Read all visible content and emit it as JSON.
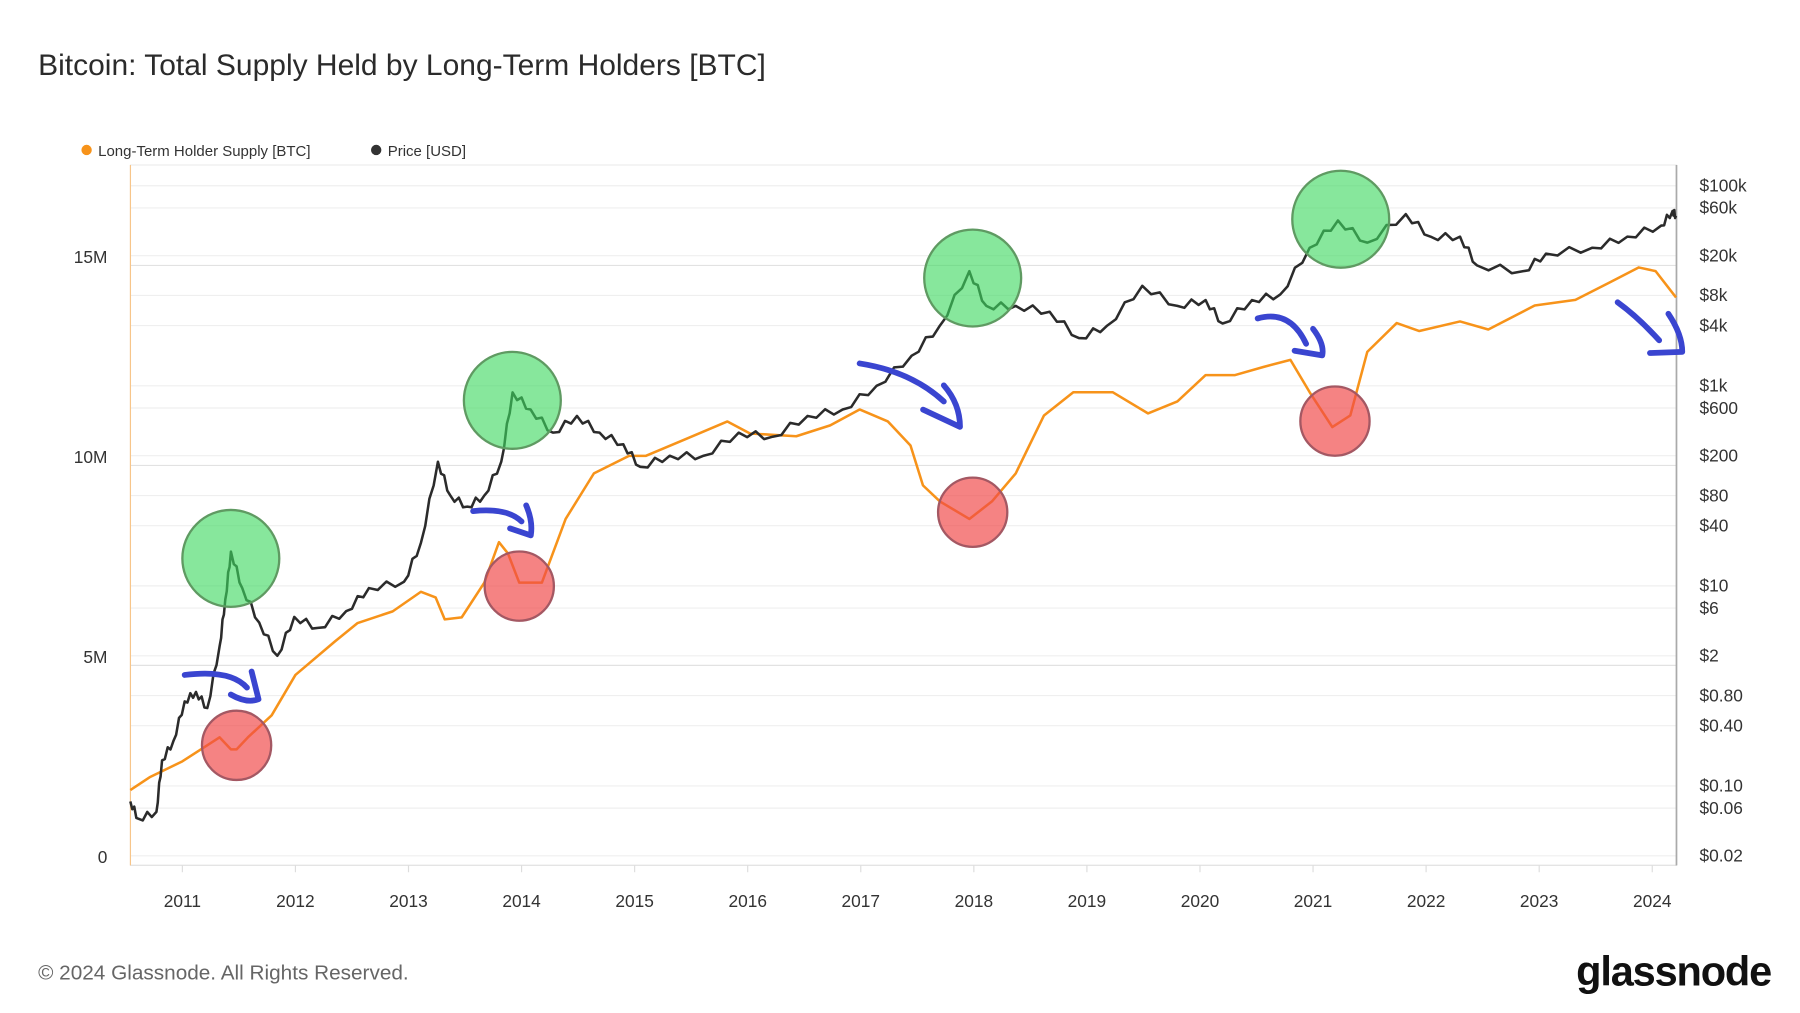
{
  "chart_data": {
    "type": "line",
    "title": "Bitcoin: Total Supply Held by Long-Term Holders [BTC]",
    "legend_position": "top-left",
    "grid": true,
    "x_axis": {
      "type": "date",
      "range": [
        2010.54,
        2024.22
      ],
      "ticks": [
        "2011",
        "2012",
        "2013",
        "2014",
        "2015",
        "2016",
        "2017",
        "2018",
        "2019",
        "2020",
        "2021",
        "2022",
        "2023",
        "2024"
      ]
    },
    "y_left": {
      "range": [
        0,
        17500000
      ],
      "ticks": [
        {
          "label": "0",
          "value": 0
        },
        {
          "label": "5M",
          "value": 5000000
        },
        {
          "label": "10M",
          "value": 10000000
        },
        {
          "label": "15M",
          "value": 15000000
        }
      ]
    },
    "y_right": {
      "scale": "log",
      "range": [
        0.015,
        170000
      ],
      "ticks": [
        {
          "label": "$100k",
          "value": 100000
        },
        {
          "label": "$60k",
          "value": 60000
        },
        {
          "label": "$20k",
          "value": 20000
        },
        {
          "label": "$8k",
          "value": 8000
        },
        {
          "label": "$4k",
          "value": 4000
        },
        {
          "label": "$1k",
          "value": 1000
        },
        {
          "label": "$600",
          "value": 600
        },
        {
          "label": "$200",
          "value": 200
        },
        {
          "label": "$80",
          "value": 80
        },
        {
          "label": "$40",
          "value": 40
        },
        {
          "label": "$10",
          "value": 10
        },
        {
          "label": "$6",
          "value": 6
        },
        {
          "label": "$2",
          "value": 2
        },
        {
          "label": "$0.80",
          "value": 0.8
        },
        {
          "label": "$0.40",
          "value": 0.4
        },
        {
          "label": "$0.10",
          "value": 0.1
        },
        {
          "label": "$0.06",
          "value": 0.06
        },
        {
          "label": "$0.02",
          "value": 0.02
        }
      ]
    },
    "series": [
      {
        "name": "Long-Term Holder Supply [BTC]",
        "axis": "left",
        "color": "#f7931a",
        "x": [
          2010.54,
          2010.71,
          2011.0,
          2011.33,
          2011.43,
          2011.48,
          2011.58,
          2011.79,
          2012.0,
          2012.35,
          2012.55,
          2012.86,
          2013.11,
          2013.24,
          2013.32,
          2013.47,
          2013.67,
          2013.8,
          2013.88,
          2013.98,
          2014.18,
          2014.39,
          2014.64,
          2014.95,
          2015.1,
          2015.46,
          2015.82,
          2016.02,
          2016.43,
          2016.73,
          2016.99,
          2017.24,
          2017.44,
          2017.55,
          2017.7,
          2017.96,
          2018.16,
          2018.37,
          2018.62,
          2018.88,
          2019.23,
          2019.54,
          2019.8,
          2020.05,
          2020.31,
          2020.56,
          2020.8,
          2020.97,
          2021.17,
          2021.33,
          2021.48,
          2021.74,
          2021.94,
          2022.3,
          2022.55,
          2022.96,
          2023.32,
          2023.62,
          2023.88,
          2024.03,
          2024.21
        ],
        "y": [
          1880000,
          2200000,
          2600000,
          3200000,
          2900000,
          2900000,
          3200000,
          3750000,
          4760000,
          5600000,
          6060000,
          6350000,
          6840000,
          6700000,
          6150000,
          6200000,
          7070000,
          8080000,
          7800000,
          7070000,
          7070000,
          8660000,
          9800000,
          10240000,
          10240000,
          10670000,
          11100000,
          10800000,
          10730000,
          11000000,
          11400000,
          11100000,
          10500000,
          9500000,
          9100000,
          8660000,
          9100000,
          9800000,
          11250000,
          11830000,
          11830000,
          11300000,
          11600000,
          12260000,
          12260000,
          12460000,
          12640000,
          11830000,
          10960000,
          11250000,
          12840000,
          13560000,
          13360000,
          13600000,
          13400000,
          14000000,
          14140000,
          14570000,
          14950000,
          14860000,
          14200000
        ]
      },
      {
        "name": "Price [USD]",
        "axis": "right",
        "color": "#2b2b2b",
        "x": [
          2010.54,
          2010.61,
          2010.77,
          2010.82,
          2010.92,
          2011.02,
          2011.12,
          2011.22,
          2011.33,
          2011.38,
          2011.43,
          2011.53,
          2011.68,
          2011.84,
          2011.99,
          2012.2,
          2012.45,
          2012.65,
          2012.96,
          2013.11,
          2013.26,
          2013.37,
          2013.52,
          2013.67,
          2013.82,
          2013.92,
          2014.08,
          2014.28,
          2014.49,
          2014.69,
          2014.9,
          2015.05,
          2015.31,
          2015.61,
          2015.92,
          2016.22,
          2016.53,
          2016.84,
          2017.14,
          2017.45,
          2017.7,
          2017.96,
          2018.11,
          2018.37,
          2018.67,
          2018.93,
          2019.18,
          2019.49,
          2019.8,
          2020.05,
          2020.2,
          2020.46,
          2020.71,
          2020.97,
          2021.22,
          2021.48,
          2021.82,
          2022.04,
          2022.3,
          2022.45,
          2022.86,
          2023.06,
          2023.47,
          2023.78,
          2024.08,
          2024.18,
          2024.21
        ],
        "y": [
          0.07,
          0.047,
          0.055,
          0.18,
          0.28,
          0.7,
          0.87,
          0.6,
          2.5,
          7.3,
          22,
          9.5,
          4.3,
          2.0,
          4.9,
          3.8,
          5.6,
          9.5,
          11,
          27,
          174,
          80,
          62,
          80,
          174,
          860,
          580,
          340,
          500,
          340,
          260,
          155,
          200,
          200,
          340,
          310,
          500,
          580,
          1000,
          2000,
          4000,
          14000,
          6300,
          6300,
          5500,
          3000,
          4000,
          10000,
          6300,
          7200,
          4200,
          7200,
          8200,
          24000,
          45000,
          27000,
          52000,
          31000,
          31000,
          16000,
          14000,
          21000,
          24000,
          31000,
          40000,
          56000,
          50000
        ]
      }
    ],
    "annotations": {
      "green_circles_at": [
        "2011.43",
        "2013.92",
        "2017.96",
        "2021.22"
      ],
      "red_circles_at": [
        "2011.48",
        "2013.98",
        "2017.96",
        "2021.17"
      ],
      "arrow_color": "#3a45d0"
    }
  },
  "legend": [
    {
      "label": "Long-Term Holder Supply [BTC]",
      "color": "#f7931a"
    },
    {
      "label": "Price [USD]",
      "color": "#333333"
    }
  ],
  "footer": {
    "copyright": "© 2024 Glassnode. All Rights Reserved.",
    "logo": "glassnode"
  }
}
